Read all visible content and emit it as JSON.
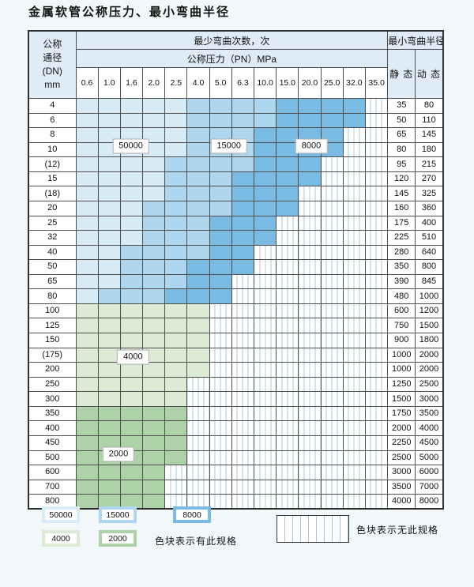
{
  "title": "金属软管公称压力、最小弯曲半径",
  "colors": {
    "50000": "#d8ecf8",
    "15000": "#aed7ef",
    "8000": "#79bbe3",
    "4000": "#dcebd6",
    "2000": "#aed2a8"
  },
  "table": {
    "corner_lines": [
      "公称",
      "通径",
      "(DN)",
      "mm"
    ],
    "header_cycles": "最少弯曲次数，次",
    "header_pressure": "公称压力（PN）MPa",
    "header_radius": "最小弯曲半径",
    "header_static": "静 态",
    "header_dynamic": "动 态",
    "pressures": [
      "0.6",
      "1.0",
      "1.6",
      "2.0",
      "2.5",
      "4.0",
      "5.0",
      "6.3",
      "10.0",
      "15.0",
      "20.0",
      "25.0",
      "32.0",
      "35.0"
    ],
    "cell_codes": {
      "A": "50000",
      "B": "15000",
      "C": "8000",
      "D": "4000",
      "E": "2000",
      "-": "none"
    },
    "rows": [
      {
        "dn": "4",
        "cells": "AAAAABBBBCCCC-",
        "static": "35",
        "dynamic": "80"
      },
      {
        "dn": "6",
        "cells": "AAAAABBBBCCCC-",
        "static": "50",
        "dynamic": "110"
      },
      {
        "dn": "8",
        "cells": "AAAAABBBCCCC--",
        "static": "65",
        "dynamic": "145"
      },
      {
        "dn": "10",
        "cells": "AAAAABBBCCCC--",
        "static": "80",
        "dynamic": "180"
      },
      {
        "dn": "(12)",
        "cells": "AAAABBBBCCC---",
        "static": "95",
        "dynamic": "215"
      },
      {
        "dn": "15",
        "cells": "AAAABBBCCCC---",
        "static": "120",
        "dynamic": "270"
      },
      {
        "dn": "(18)",
        "cells": "AAAABBBCCC----",
        "static": "145",
        "dynamic": "325"
      },
      {
        "dn": "20",
        "cells": "AAABBBBCCC----",
        "static": "160",
        "dynamic": "360"
      },
      {
        "dn": "25",
        "cells": "AAABBBCCC-----",
        "static": "175",
        "dynamic": "400"
      },
      {
        "dn": "32",
        "cells": "AAABBBCCC-----",
        "static": "225",
        "dynamic": "510"
      },
      {
        "dn": "40",
        "cells": "AABBBBCC------",
        "static": "280",
        "dynamic": "640"
      },
      {
        "dn": "50",
        "cells": "AABBBCCC------",
        "static": "350",
        "dynamic": "800"
      },
      {
        "dn": "65",
        "cells": "AABBBCC-------",
        "static": "390",
        "dynamic": "845"
      },
      {
        "dn": "80",
        "cells": "ABBBCCC-------",
        "static": "480",
        "dynamic": "1000"
      },
      {
        "dn": "100",
        "cells": "DDDDDD--------",
        "static": "600",
        "dynamic": "1200"
      },
      {
        "dn": "125",
        "cells": "DDDDDD--------",
        "static": "750",
        "dynamic": "1500"
      },
      {
        "dn": "150",
        "cells": "DDDDDD--------",
        "static": "900",
        "dynamic": "1800"
      },
      {
        "dn": "(175)",
        "cells": "DDDDDD--------",
        "static": "1000",
        "dynamic": "2000"
      },
      {
        "dn": "200",
        "cells": "DDDDDD--------",
        "static": "1000",
        "dynamic": "2000"
      },
      {
        "dn": "250",
        "cells": "DDDDD---------",
        "static": "1250",
        "dynamic": "2500"
      },
      {
        "dn": "300",
        "cells": "DDDDD---------",
        "static": "1500",
        "dynamic": "3000"
      },
      {
        "dn": "350",
        "cells": "EEEEE---------",
        "static": "1750",
        "dynamic": "3500"
      },
      {
        "dn": "400",
        "cells": "EEEEE---------",
        "static": "2000",
        "dynamic": "4000"
      },
      {
        "dn": "450",
        "cells": "EEEEE---------",
        "static": "2250",
        "dynamic": "4500"
      },
      {
        "dn": "500",
        "cells": "EEEEE---------",
        "static": "2500",
        "dynamic": "5000"
      },
      {
        "dn": "600",
        "cells": "EEEE----------",
        "static": "3000",
        "dynamic": "6000"
      },
      {
        "dn": "700",
        "cells": "EEEE----------",
        "static": "3500",
        "dynamic": "7000"
      },
      {
        "dn": "800",
        "cells": "EEEE----------",
        "static": "4000",
        "dynamic": "8000"
      }
    ]
  },
  "annotations": [
    {
      "text": "50000",
      "row": 3,
      "col": 2.5
    },
    {
      "text": "15000",
      "row": 3,
      "col": 6.9
    },
    {
      "text": "8000",
      "row": 3,
      "col": 10.6
    },
    {
      "text": "4000",
      "row": 17.4,
      "col": 2.6
    },
    {
      "text": "2000",
      "row": 24,
      "col": 1.95
    }
  ],
  "legend": {
    "items": [
      {
        "value": "50000"
      },
      {
        "value": "15000"
      },
      {
        "value": "8000"
      },
      {
        "value": "4000"
      },
      {
        "value": "2000"
      }
    ],
    "has_spec_text": "色块表示有此规格",
    "no_spec_text": "色块表示无此规格"
  }
}
